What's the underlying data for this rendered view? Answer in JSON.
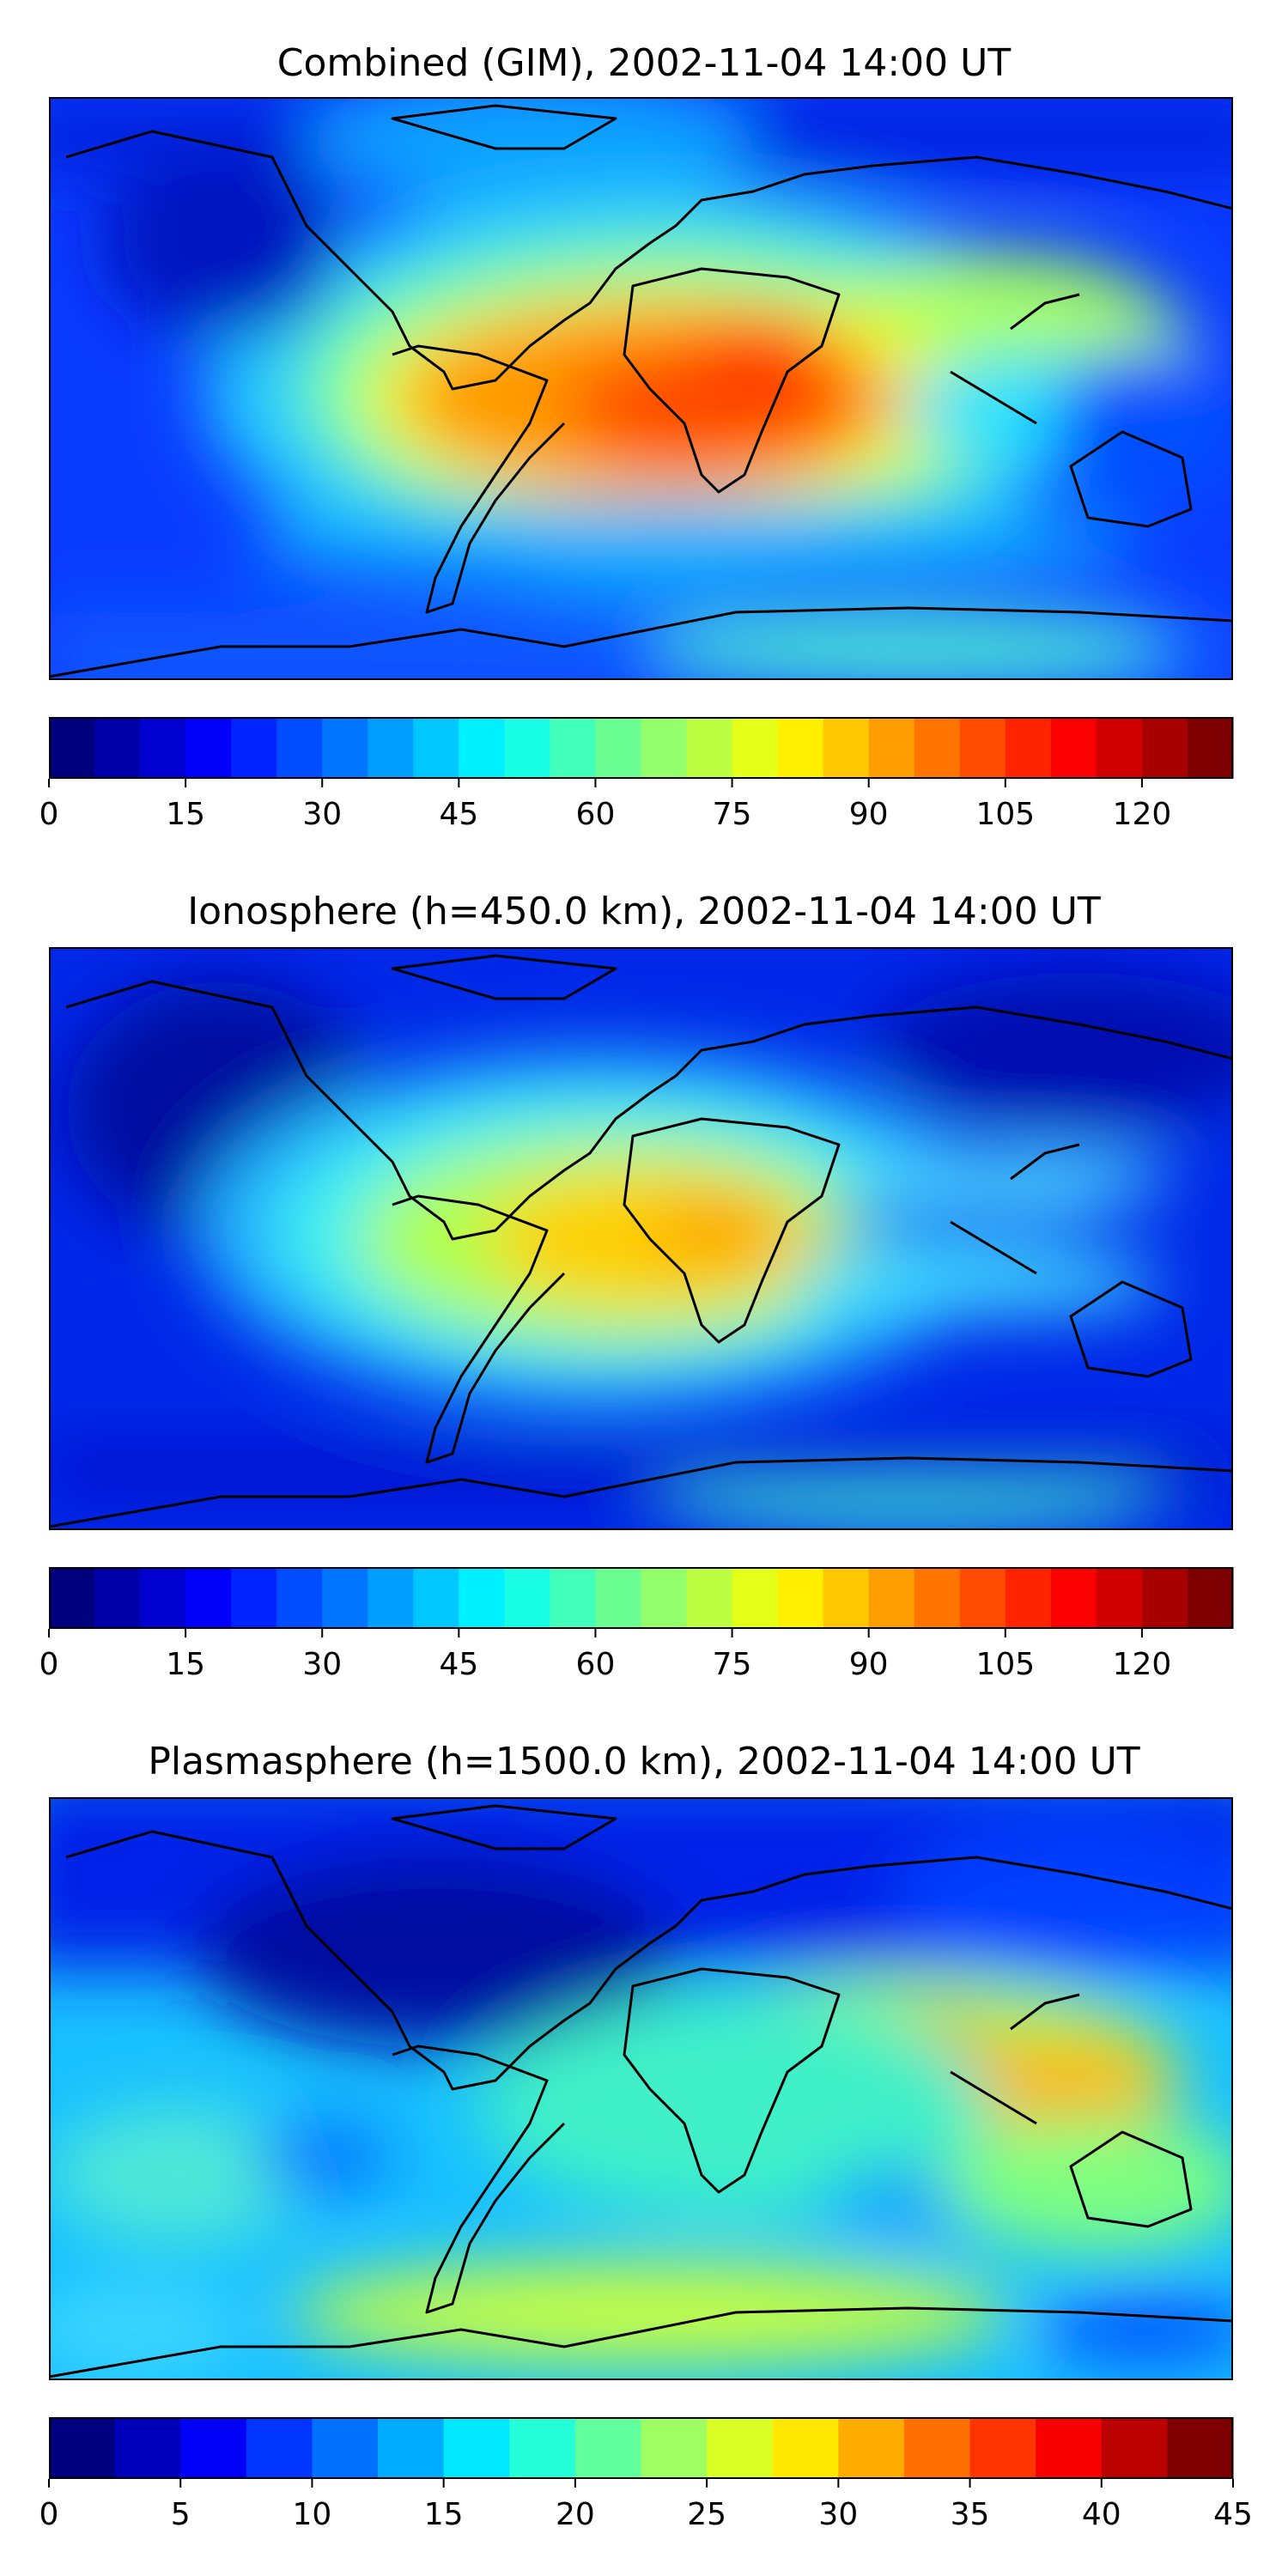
{
  "figure": {
    "panels": [
      {
        "id": "gim",
        "title": "Combined (GIM), 2002-11-04 14:00 UT",
        "colorbar": {
          "min": 0,
          "max": 130,
          "levels": 26,
          "ticks": [
            "0",
            "15",
            "30",
            "45",
            "60",
            "75",
            "90",
            "105",
            "120"
          ],
          "tick_values": [
            0,
            15,
            30,
            45,
            60,
            75,
            90,
            105,
            120
          ]
        }
      },
      {
        "id": "ionosphere",
        "title": "Ionosphere  (h=450.0 km), 2002-11-04 14:00 UT",
        "colorbar": {
          "min": 0,
          "max": 130,
          "levels": 26,
          "ticks": [
            "0",
            "15",
            "30",
            "45",
            "60",
            "75",
            "90",
            "105",
            "120"
          ],
          "tick_values": [
            0,
            15,
            30,
            45,
            60,
            75,
            90,
            105,
            120
          ]
        }
      },
      {
        "id": "plasmasphere",
        "title": "Plasmasphere (h=1500.0 km), 2002-11-04 14:00 UT",
        "colorbar": {
          "min": 0,
          "max": 45,
          "levels": 18,
          "ticks": [
            "0",
            "5",
            "10",
            "15",
            "20",
            "25",
            "30",
            "35",
            "40",
            "45"
          ],
          "tick_values": [
            0,
            5,
            10,
            15,
            20,
            25,
            30,
            35,
            40,
            45
          ]
        }
      }
    ]
  },
  "colors": {
    "jet_stops": [
      "#00007f",
      "#0000ff",
      "#007fff",
      "#00ffff",
      "#7fff7f",
      "#ffff00",
      "#ff7f00",
      "#ff0000",
      "#7f0000"
    ]
  }
}
